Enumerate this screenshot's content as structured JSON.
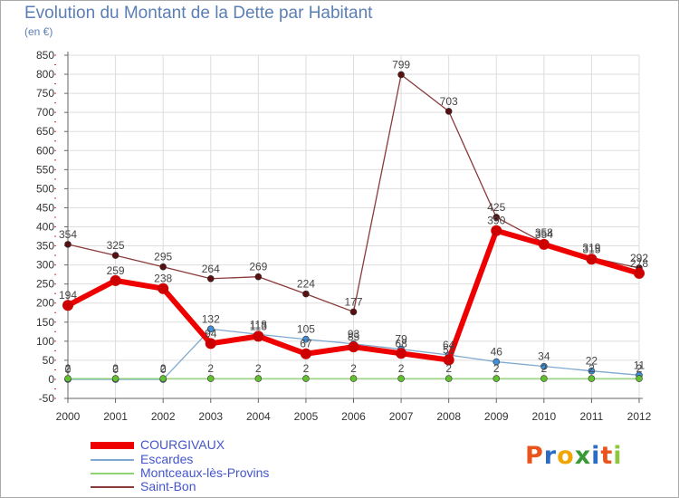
{
  "title": "Evolution du Montant de la Dette par Habitant",
  "unit": "(en €)",
  "logo": "Proxiti",
  "colors": {
    "grid": "#dddddd",
    "axis": "#666666",
    "tick_text": "#333333",
    "label_text": "#444444",
    "logo": [
      "#e8541c",
      "#2b6cc4",
      "#f0a500",
      "#3a9a36",
      "#2b6cc4",
      "#e8541c",
      "#8dc63f"
    ]
  },
  "chart_data": {
    "type": "line",
    "title": "Evolution du Montant de la Dette par Habitant",
    "ylabel": "(en €)",
    "ylim": [
      -50,
      850
    ],
    "yticks": [
      -50,
      0,
      50,
      100,
      150,
      200,
      250,
      300,
      350,
      400,
      450,
      500,
      550,
      600,
      650,
      700,
      750,
      800,
      850
    ],
    "x": [
      "2000",
      "2001",
      "2002",
      "2003",
      "2004",
      "2005",
      "2006",
      "2007",
      "2008",
      "2009",
      "2010",
      "2011",
      "2012"
    ],
    "series": [
      {
        "name": "COURGIVAUX",
        "color": "#ee0000",
        "marker": "#cc0000",
        "width": 6,
        "radius": 6,
        "values": [
          194,
          259,
          238,
          94,
          113,
          67,
          85,
          68,
          51,
          390,
          354,
          315,
          278
        ],
        "labels": [
          "194",
          "259",
          "238",
          "94",
          "113",
          "67",
          "85",
          "68",
          "51",
          "390",
          "354",
          "315",
          "278"
        ]
      },
      {
        "name": "Escardes",
        "color": "#7fa9cf",
        "marker": "#3f8ed6",
        "width": 1.3,
        "radius": 3.5,
        "values": [
          0,
          0,
          0,
          132,
          118,
          105,
          93,
          79,
          64,
          46,
          34,
          22,
          11
        ],
        "labels": [
          "0",
          "0",
          "0",
          "132",
          "118",
          "105",
          "93",
          "79",
          "64",
          "46",
          "34",
          "22",
          "11"
        ]
      },
      {
        "name": "Montceaux-lès-Provins",
        "color": "#8fd46e",
        "marker": "#62c12e",
        "width": 1.3,
        "radius": 3.5,
        "values": [
          2,
          2,
          2,
          2,
          2,
          2,
          2,
          2,
          2,
          2,
          2,
          2,
          2
        ],
        "labels": [
          "2",
          "2",
          "2",
          "2",
          "2",
          "2",
          "2",
          "2",
          "2",
          "2",
          "2",
          "2",
          "2"
        ]
      },
      {
        "name": "Saint-Bon",
        "color": "#8a3a3a",
        "marker": "#5a1010",
        "width": 1.3,
        "radius": 3.5,
        "values": [
          354,
          325,
          295,
          264,
          269,
          224,
          177,
          799,
          703,
          425,
          358,
          319,
          292
        ],
        "labels": [
          "354",
          "325",
          "295",
          "264",
          "269",
          "224",
          "177",
          "799",
          "703",
          "425",
          "358",
          "319",
          "292"
        ]
      }
    ]
  }
}
